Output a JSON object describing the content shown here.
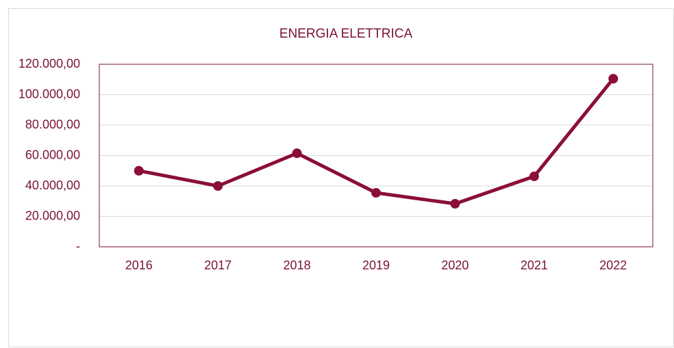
{
  "chart_data": {
    "type": "line",
    "title": "ENERGIA ELETTRICA",
    "categories": [
      "2016",
      "2017",
      "2018",
      "2019",
      "2020",
      "2021",
      "2022"
    ],
    "series": [
      {
        "name": "ENERGIA ELETTRICA",
        "color": "#8b0e3a",
        "values": [
          50000,
          40000,
          61500,
          35500,
          28300,
          46300,
          110500
        ]
      }
    ],
    "ylim": [
      0,
      120000
    ],
    "yticks": [
      {
        "value": 0,
        "label": "-"
      },
      {
        "value": 20000,
        "label": "20.000,00"
      },
      {
        "value": 40000,
        "label": "40.000,00"
      },
      {
        "value": 60000,
        "label": "60.000,00"
      },
      {
        "value": 80000,
        "label": "80.000,00"
      },
      {
        "value": 100000,
        "label": "100.000,00"
      },
      {
        "value": 120000,
        "label": "120.000,00"
      }
    ],
    "grid": true
  }
}
